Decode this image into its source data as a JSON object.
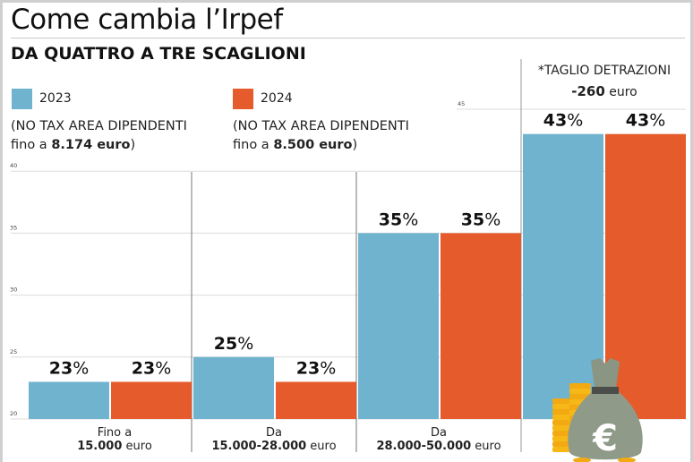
{
  "header": {
    "title": "Come cambia l’Irpef",
    "subtitle": "DA QUATTRO A TRE SCAGLIONI"
  },
  "legend": [
    {
      "label": "2023",
      "color": "#6fb3cf",
      "note_line1": "(NO TAX AREA DIPENDENTI",
      "note_line2_plain": "fino a ",
      "note_line2_bold": "8.174 euro",
      "note_line2_tail": ")"
    },
    {
      "label": "2024",
      "color": "#e55b2b",
      "note_line1": "(NO TAX AREA DIPENDENTI",
      "note_line2_plain": "fino a ",
      "note_line2_bold": "8.500 euro",
      "note_line2_tail": ")"
    }
  ],
  "annotation": {
    "line1": "*TAGLIO DETRAZIONI",
    "amount": "-260",
    "unit": " euro"
  },
  "chart_data": {
    "type": "bar",
    "title": "Come cambia l’Irpef",
    "subtitle": "DA QUATTRO A TRE SCAGLIONI",
    "xlabel": "",
    "ylabel": "",
    "ylim": [
      20,
      45
    ],
    "yticks": [
      20,
      25,
      30,
      35,
      40,
      45
    ],
    "grid": true,
    "legend_position": "top-left",
    "categories": [
      {
        "line1": "Fino a",
        "bold": "15.000",
        "tail": " euro"
      },
      {
        "line1": "Da",
        "bold": "15.000-28.000",
        "tail": " euro"
      },
      {
        "line1": "Da",
        "bold": "28.000-50.000",
        "tail": " euro"
      },
      {
        "line1": "",
        "bold": "",
        "tail": ""
      }
    ],
    "series": [
      {
        "name": "2023",
        "color": "#6fb3cf",
        "values": [
          23,
          25,
          35,
          43
        ],
        "labels": [
          "23%",
          "25%",
          "35%",
          "43%"
        ]
      },
      {
        "name": "2024",
        "color": "#e55b2b",
        "values": [
          23,
          23,
          35,
          43
        ],
        "labels": [
          "23%",
          "23%",
          "35%",
          "43%"
        ]
      }
    ]
  },
  "illustration": {
    "icon": "euro-money-bag-icon",
    "symbol": "€"
  }
}
